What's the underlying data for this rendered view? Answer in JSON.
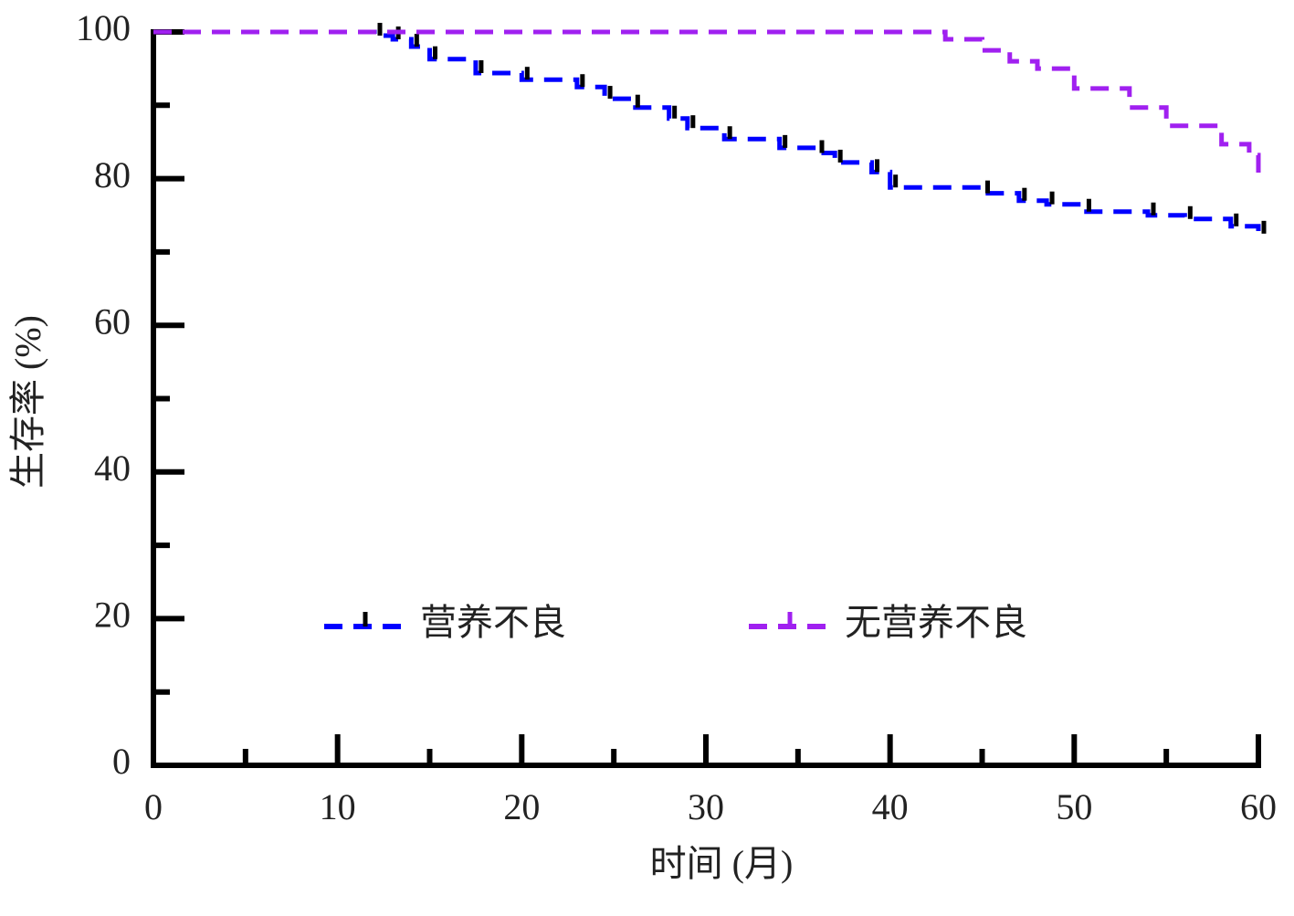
{
  "chart_data": {
    "type": "step",
    "xlabel": "时间 (月)",
    "ylabel": "生存率 (%)",
    "xlim": [
      0,
      60
    ],
    "xticks": [
      0,
      10,
      20,
      30,
      40,
      50,
      60
    ],
    "xminorticks": [
      5,
      15,
      25,
      35,
      45,
      55
    ],
    "ylim": [
      0,
      100
    ],
    "yticks": [
      0,
      20,
      40,
      60,
      80,
      100
    ],
    "yminorticks": [
      10,
      30,
      50,
      70,
      90
    ],
    "legend": "bottom-center",
    "series": [
      {
        "name": "营养不良",
        "color": "#0000ff",
        "censor_color": "#000000",
        "x": [
          0,
          11,
          12,
          13,
          14,
          15,
          17.5,
          20,
          23,
          24.5,
          26,
          28,
          29,
          31,
          34,
          36,
          37,
          39,
          40,
          45,
          47,
          48.5,
          50.5,
          54,
          56,
          58.5,
          60
        ],
        "values": [
          100,
          100,
          99.5,
          99,
          98,
          96.3,
          94.4,
          93.5,
          92.5,
          90.9,
          89.7,
          88.2,
          86.9,
          85.4,
          84.2,
          83.5,
          82.2,
          80.9,
          78.8,
          78,
          77,
          76.5,
          75.5,
          75,
          74.5,
          73.5,
          72.5
        ]
      },
      {
        "name": "无营养不良",
        "color": "#a020f0",
        "x": [
          0,
          43,
          45,
          46.5,
          48,
          50,
          53,
          55,
          58,
          59.5,
          60
        ],
        "values": [
          100,
          99,
          97.5,
          96,
          95,
          92.3,
          89.7,
          87.2,
          84.7,
          83.2,
          79.5
        ]
      }
    ]
  }
}
